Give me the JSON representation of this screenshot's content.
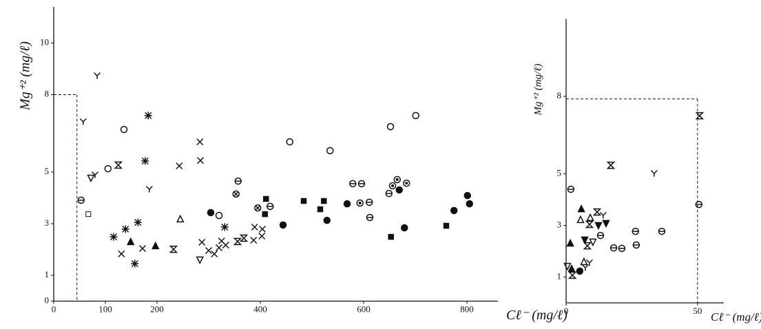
{
  "chart_data": [
    {
      "type": "scatter",
      "y_label": "Mg⁺² (mg/ℓ)",
      "x_label": "Cℓ⁻ (mg/ℓ)",
      "xlim": [
        0,
        860
      ],
      "ylim": [
        0,
        11.4
      ],
      "xticks": [
        0,
        100,
        200,
        400,
        600,
        800
      ],
      "yticks": [
        0,
        1,
        3,
        5,
        8,
        10
      ],
      "dashed_x": 45,
      "dashed_y": 8,
      "series": [
        {
          "color": "#111",
          "x": [
            84,
            57,
            72,
            80,
            53,
            67,
            105,
            125,
            136,
            183,
            177,
            185,
            116,
            131,
            139,
            149,
            163,
            157,
            172,
            197,
            243,
            245,
            232,
            283,
            284,
            283,
            287,
            304,
            320,
            300,
            311,
            320,
            325,
            331,
            333,
            357,
            353,
            356,
            368,
            387,
            389,
            403,
            404,
            395,
            419,
            411,
            409,
            457,
            444,
            484,
            535,
            516,
            523,
            529,
            568,
            579,
            596,
            593,
            611,
            612,
            652,
            701,
            665,
            656,
            649,
            669,
            683,
            653,
            679,
            760,
            775,
            801,
            805
          ],
          "values": [
            8.73,
            6.95,
            4.76,
            4.89,
            3.91,
            3.37,
            5.13,
            5.27,
            6.65,
            7.19,
            5.43,
            4.33,
            2.49,
            1.83,
            2.79,
            2.31,
            3.05,
            1.45,
            2.04,
            2.15,
            5.24,
            3.19,
            2.01,
            6.17,
            5.45,
            1.59,
            2.28,
            3.43,
            3.32,
            1.96,
            1.83,
            2.07,
            2.33,
            2.87,
            2.17,
            4.65,
            4.15,
            2.31,
            2.44,
            2.36,
            2.87,
            2.52,
            2.79,
            3.61,
            3.67,
            3.96,
            3.37,
            6.17,
            2.95,
            3.88,
            5.83,
            3.56,
            3.88,
            3.13,
            3.77,
            4.55,
            4.55,
            3.8,
            3.83,
            3.24,
            6.76,
            7.19,
            4.71,
            4.47,
            4.17,
            4.31,
            4.57,
            2.49,
            2.84,
            2.92,
            3.51,
            4.09,
            3.77
          ],
          "markers": [
            "y",
            "y",
            "inv-triangle",
            "y",
            "circle-bar",
            "square",
            "circle",
            "hourglass",
            "circle",
            "asterisk",
            "asterisk",
            "y",
            "asterisk",
            "x",
            "asterisk",
            "filled-triangle",
            "asterisk",
            "asterisk",
            "x",
            "filled-triangle",
            "x",
            "triangle",
            "hourglass",
            "x",
            "x",
            "inv-triangle",
            "x",
            "filled-circle",
            "circle",
            "x",
            "x",
            "x",
            "x",
            "asterisk",
            "x",
            "circle-bar",
            "circle-cross",
            "hourglass",
            "hourglass",
            "x",
            "x",
            "x",
            "x",
            "circle-cross",
            "circle-bar",
            "filled-square",
            "filled-square",
            "circle",
            "filled-circle",
            "filled-square",
            "circle",
            "filled-square",
            "filled-square",
            "filled-circle",
            "filled-circle",
            "circle-bar",
            "circle-bar",
            "circle-dot",
            "circle-bar",
            "circle-bar",
            "circle",
            "circle",
            "circle-dot",
            "circle-dot",
            "circle-bar",
            "filled-circle",
            "circle-dot",
            "filled-square",
            "filled-circle",
            "filled-square",
            "filled-circle",
            "filled-circle",
            "filled-circle"
          ]
        }
      ]
    },
    {
      "type": "scatter",
      "y_label": "Mg⁺² (mg/ℓ)",
      "x_label": "Cℓ⁻ (mg/ℓ)",
      "xlim": [
        0,
        60
      ],
      "ylim": [
        0,
        11
      ],
      "xticks": [
        0,
        50
      ],
      "yticks": [
        1,
        3,
        5,
        8
      ],
      "dashed_x": 50,
      "dashed_y": 7.9,
      "series": [
        {
          "color": "#111",
          "x": [
            1.8,
            5.8,
            1.6,
            5.5,
            9.2,
            11.8,
            14.1,
            12.3,
            15.2,
            8.9,
            13.1,
            7.1,
            8.1,
            10.2,
            18.1,
            21.2,
            26.4,
            26.7,
            36.4,
            50.5,
            17.0,
            33.5,
            50.8,
            0.5,
            2.1,
            2.4,
            5.2,
            7.3,
            6.8,
            8.9
          ],
          "values": [
            4.4,
            3.65,
            2.32,
            3.23,
            3.31,
            3.52,
            3.39,
            2.99,
            3.07,
            3.04,
            2.61,
            2.43,
            2.21,
            2.35,
            2.13,
            2.11,
            2.77,
            2.24,
            2.77,
            3.81,
            5.33,
            5.01,
            7.25,
            1.41,
            1.33,
            1.07,
            1.23,
            1.36,
            1.6,
            1.55
          ],
          "markers": [
            "circle-bar",
            "filled-triangle",
            "filled-triangle",
            "triangle",
            "triangle",
            "hourglass",
            "y",
            "filled-inv-triangle",
            "filled-inv-triangle",
            "hourglass",
            "circle-bar",
            "filled-inv-triangle",
            "hourglass",
            "inv-triangle",
            "circle-bar",
            "circle-bar",
            "circle-bar",
            "circle-bar",
            "circle-bar",
            "circle-bar",
            "hourglass",
            "y",
            "hourglass",
            "inv-triangle",
            "filled-triangle",
            "hourglass",
            "filled-circle",
            "y",
            "triangle",
            "y"
          ]
        }
      ]
    }
  ]
}
